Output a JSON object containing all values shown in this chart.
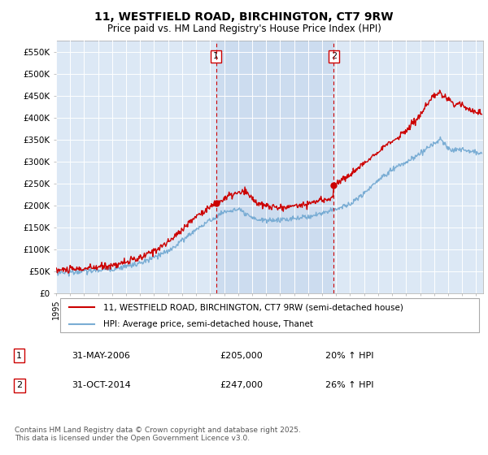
{
  "title": "11, WESTFIELD ROAD, BIRCHINGTON, CT7 9RW",
  "subtitle": "Price paid vs. HM Land Registry's House Price Index (HPI)",
  "ylabel_ticks": [
    "£0",
    "£50K",
    "£100K",
    "£150K",
    "£200K",
    "£250K",
    "£300K",
    "£350K",
    "£400K",
    "£450K",
    "£500K",
    "£550K"
  ],
  "ytick_values": [
    0,
    50000,
    100000,
    150000,
    200000,
    250000,
    300000,
    350000,
    400000,
    450000,
    500000,
    550000
  ],
  "ylim": [
    0,
    575000
  ],
  "xlim_start": 1995.0,
  "xlim_end": 2025.5,
  "transaction1": {
    "date_num": 2006.42,
    "price": 205000,
    "label": "1",
    "date_str": "31-MAY-2006",
    "pct": "20% ↑ HPI"
  },
  "transaction2": {
    "date_num": 2014.83,
    "price": 247000,
    "label": "2",
    "date_str": "31-OCT-2014",
    "pct": "26% ↑ HPI"
  },
  "legend_line1": "11, WESTFIELD ROAD, BIRCHINGTON, CT7 9RW (semi-detached house)",
  "legend_line2": "HPI: Average price, semi-detached house, Thanet",
  "footer": "Contains HM Land Registry data © Crown copyright and database right 2025.\nThis data is licensed under the Open Government Licence v3.0.",
  "table_row1": [
    "1",
    "31-MAY-2006",
    "£205,000",
    "20% ↑ HPI"
  ],
  "table_row2": [
    "2",
    "31-OCT-2014",
    "£247,000",
    "26% ↑ HPI"
  ],
  "line_color_red": "#cc0000",
  "line_color_blue": "#7aadd4",
  "vline_color": "#cc0000",
  "plot_bg_color": "#dce8f5",
  "highlight_bg_color": "#ccdcef"
}
